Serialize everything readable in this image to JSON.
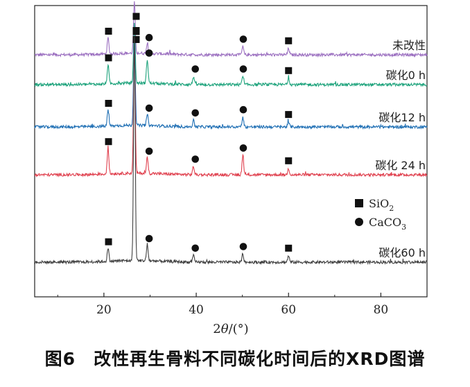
{
  "caption": {
    "figure_number": "图6",
    "text": "改性再生骨料不同碳化时间后的XRD图谱"
  },
  "chart_data": {
    "type": "line",
    "xlabel": "2θ/(°)",
    "ylabel": "",
    "xlim": [
      5,
      90
    ],
    "x_ticks": [
      20,
      40,
      60,
      80
    ],
    "grid": false,
    "legend_position": "right, middle",
    "legend": [
      {
        "name": "SiO2",
        "marker": "square"
      },
      {
        "name": "CaCO3",
        "marker": "circle"
      }
    ],
    "colors": {
      "未改性": "#9b6fc0",
      "碳化0 h": "#1ea37c",
      "碳化12 h": "#1f6fb4",
      "碳化 24 h": "#e0414f",
      "碳化60 h": "#404040"
    },
    "series": [
      {
        "name": "未改性",
        "peaks": [
          [
            20.9,
            0.1
          ],
          [
            26.6,
            0.32
          ],
          [
            29.4,
            0.06
          ],
          [
            50.1,
            0.05
          ],
          [
            60.0,
            0.04
          ]
        ],
        "markers": [
          {
            "shape": "square",
            "x": 21.0
          },
          {
            "shape": "square",
            "x": 27.0
          },
          {
            "shape": "circle",
            "x": 29.8
          },
          {
            "shape": "circle",
            "x": 50.2
          },
          {
            "shape": "square",
            "x": 60.0
          }
        ]
      },
      {
        "name": "碳化0 h",
        "peaks": [
          [
            20.9,
            0.12
          ],
          [
            26.6,
            0.38
          ],
          [
            29.4,
            0.15
          ],
          [
            39.4,
            0.05
          ],
          [
            50.1,
            0.05
          ],
          [
            60.0,
            0.04
          ]
        ],
        "markers": [
          {
            "shape": "square",
            "x": 21.0
          },
          {
            "shape": "square",
            "x": 27.0
          },
          {
            "shape": "circle",
            "x": 29.8
          },
          {
            "shape": "circle",
            "x": 39.8
          },
          {
            "shape": "circle",
            "x": 50.2
          },
          {
            "shape": "square",
            "x": 60.0
          }
        ]
      },
      {
        "name": "碳化12 h",
        "peaks": [
          [
            20.9,
            0.1
          ],
          [
            26.6,
            0.55
          ],
          [
            29.4,
            0.07
          ],
          [
            39.4,
            0.04
          ],
          [
            50.1,
            0.06
          ],
          [
            60.0,
            0.03
          ]
        ],
        "markers": [
          {
            "shape": "square",
            "x": 21.0
          },
          {
            "shape": "square",
            "x": 27.0
          },
          {
            "shape": "circle",
            "x": 29.8
          },
          {
            "shape": "circle",
            "x": 39.8
          },
          {
            "shape": "circle",
            "x": 50.2
          },
          {
            "shape": "square",
            "x": 60.0
          }
        ]
      },
      {
        "name": "碳化 24 h",
        "peaks": [
          [
            20.9,
            0.16
          ],
          [
            26.6,
            0.8
          ],
          [
            29.4,
            0.1
          ],
          [
            39.4,
            0.05
          ],
          [
            50.1,
            0.12
          ],
          [
            60.0,
            0.04
          ]
        ],
        "markers": [
          {
            "shape": "square",
            "x": 21.0
          },
          {
            "shape": "square",
            "x": 27.0
          },
          {
            "shape": "circle",
            "x": 29.8
          },
          {
            "shape": "circle",
            "x": 39.8
          },
          {
            "shape": "circle",
            "x": 50.2
          },
          {
            "shape": "square",
            "x": 60.0
          }
        ]
      },
      {
        "name": "碳化60 h",
        "peaks": [
          [
            20.9,
            0.08
          ],
          [
            26.6,
            1.4
          ],
          [
            29.4,
            0.1
          ],
          [
            39.4,
            0.04
          ],
          [
            50.1,
            0.05
          ],
          [
            60.0,
            0.04
          ]
        ],
        "markers": [
          {
            "shape": "square",
            "x": 21.0
          },
          {
            "shape": "square",
            "x": 27.0
          },
          {
            "shape": "circle",
            "x": 29.8
          },
          {
            "shape": "circle",
            "x": 39.8
          },
          {
            "shape": "circle",
            "x": 50.2
          },
          {
            "shape": "square",
            "x": 60.0
          }
        ]
      }
    ]
  }
}
